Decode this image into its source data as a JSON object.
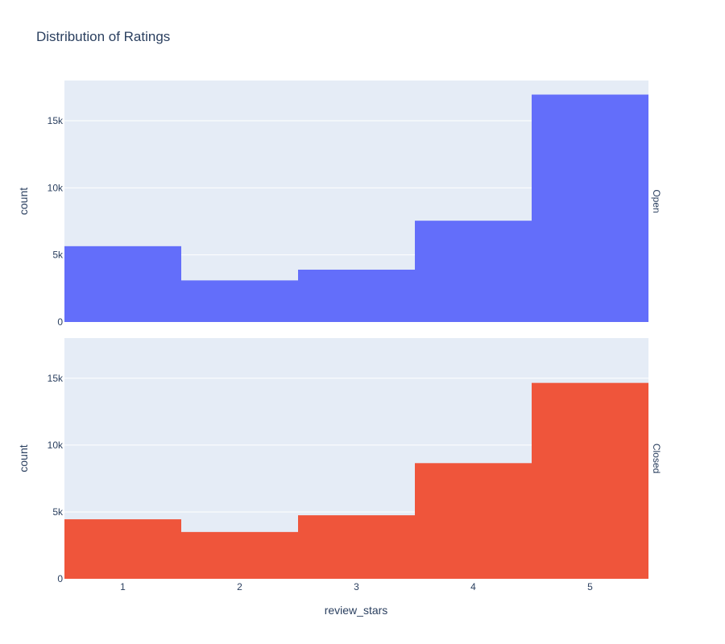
{
  "chart_data": {
    "type": "bar",
    "title": "Distribution of Ratings",
    "xlabel": "review_stars",
    "ylabel": "count",
    "categories": [
      "1",
      "2",
      "3",
      "4",
      "5"
    ],
    "xlim": [
      0.5,
      5.5
    ],
    "ylim": [
      0,
      18000
    ],
    "y_ticks": [
      0,
      5000,
      10000,
      15000
    ],
    "y_tick_labels": [
      "0",
      "5k",
      "10k",
      "15k"
    ],
    "grid": true,
    "facets": [
      {
        "label": "Open",
        "color": "#636efa",
        "values": [
          5650,
          3100,
          3900,
          7550,
          16950
        ]
      },
      {
        "label": "Closed",
        "color": "#ef553b",
        "values": [
          4450,
          3500,
          4750,
          8650,
          14650
        ]
      }
    ]
  }
}
